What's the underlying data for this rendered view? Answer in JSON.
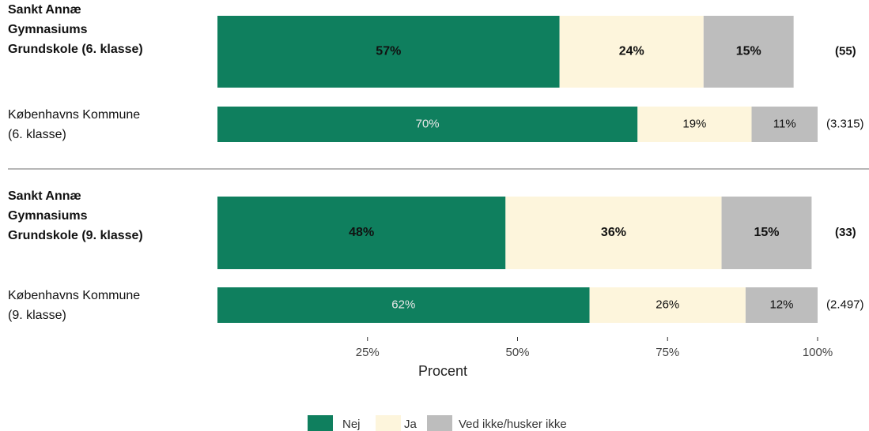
{
  "chart_data": {
    "type": "stacked-bar-horizontal",
    "categories": [
      "Sankt Annæ Gymnasiums Grundskole (6. klasse)",
      "Københavns Kommune (6. klasse)",
      "Sankt Annæ Gymnasiums Grundskole (9. klasse)",
      "Københavns Kommune (9. klasse)"
    ],
    "bold": [
      true,
      false,
      true,
      false
    ],
    "counts": [
      "(55)",
      "(3.315)",
      "(33)",
      "(2.497)"
    ],
    "series": [
      {
        "name": "Nej",
        "color": "#0f7f5e",
        "values": [
          57,
          70,
          48,
          62
        ],
        "value_labels": [
          "57%",
          "70%",
          "48%",
          "62%"
        ]
      },
      {
        "name": "Ja",
        "color": "#fdf5dc",
        "values": [
          24,
          19,
          36,
          26
        ],
        "value_labels": [
          "24%",
          "19%",
          "36%",
          "26%"
        ]
      },
      {
        "name": "Ved ikke/husker ikke",
        "color": "#bdbdbd",
        "values": [
          15,
          11,
          15,
          12
        ],
        "value_labels": [
          "15%",
          "11%",
          "15%",
          "12%"
        ]
      }
    ],
    "xlim": [
      0,
      100
    ],
    "xticks": [
      {
        "value": 25,
        "label": "25%"
      },
      {
        "value": 50,
        "label": "50%"
      },
      {
        "value": 75,
        "label": "75%"
      },
      {
        "value": 100,
        "label": "100%"
      }
    ],
    "xlabel": "Procent"
  }
}
